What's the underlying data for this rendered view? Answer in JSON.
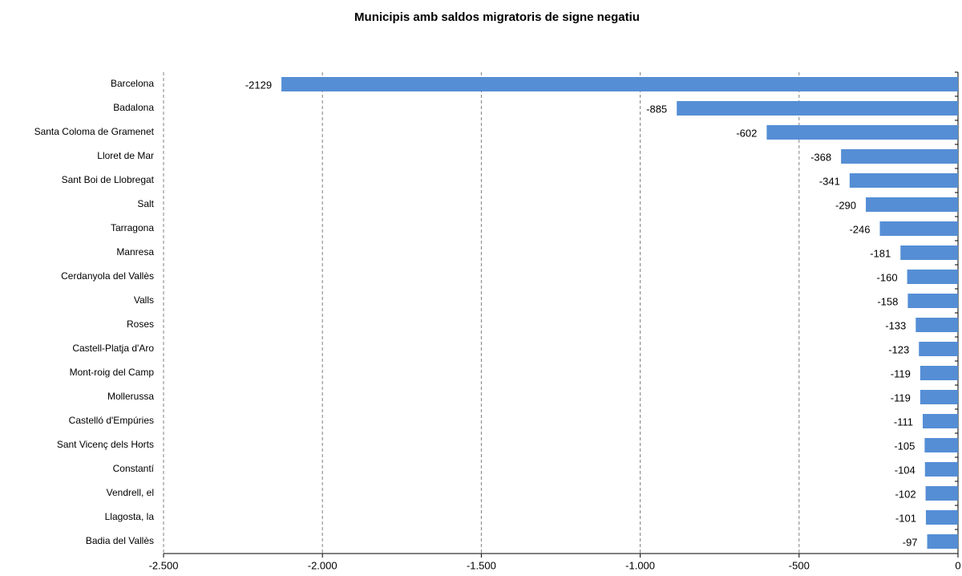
{
  "chart_data": {
    "type": "bar",
    "orientation": "horizontal",
    "title": "Municipis amb saldos migratoris de signe negatiu",
    "categories": [
      "Barcelona",
      "Badalona",
      "Santa Coloma de Gramenet",
      "Lloret de Mar",
      "Sant Boi de Llobregat",
      "Salt",
      "Tarragona",
      "Manresa",
      "Cerdanyola del Vallès",
      "Valls",
      "Roses",
      "Castell-Platja d'Aro",
      "Mont-roig del Camp",
      "Mollerussa",
      "Castelló d'Empúries",
      "Sant Vicenç dels Horts",
      "Constantí",
      "Vendrell, el",
      "Llagosta, la",
      "Badia del Vallès"
    ],
    "values": [
      -2129,
      -885,
      -602,
      -368,
      -341,
      -290,
      -246,
      -181,
      -160,
      -158,
      -133,
      -123,
      -119,
      -119,
      -111,
      -105,
      -104,
      -102,
      -101,
      -97
    ],
    "color": "#558ed5",
    "xlim": [
      -2500,
      0
    ],
    "xticks": [
      {
        "value": -2500,
        "label": "-2.500"
      },
      {
        "value": -2000,
        "label": "-2.000"
      },
      {
        "value": -1500,
        "label": "-1.500"
      },
      {
        "value": -1000,
        "label": "-1.000"
      },
      {
        "value": -500,
        "label": "-500"
      },
      0
    ],
    "grid": true
  }
}
